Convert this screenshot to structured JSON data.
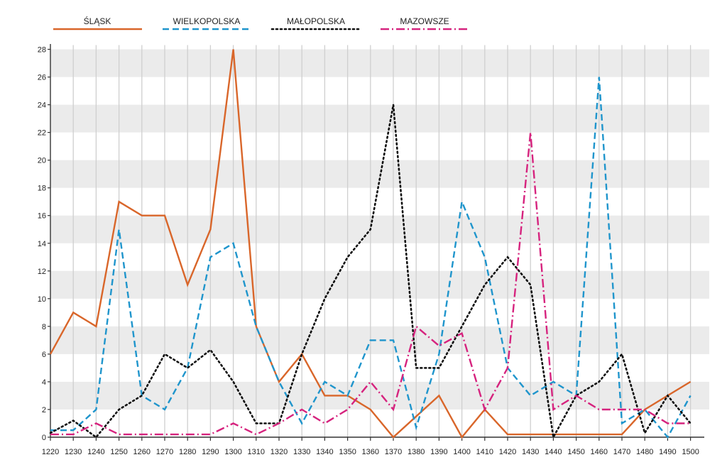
{
  "chart_data": {
    "type": "line",
    "title": "",
    "xlabel": "",
    "ylabel": "",
    "x": [
      1220,
      1230,
      1240,
      1250,
      1260,
      1270,
      1280,
      1290,
      1300,
      1310,
      1320,
      1330,
      1340,
      1350,
      1360,
      1370,
      1380,
      1390,
      1400,
      1410,
      1420,
      1430,
      1440,
      1450,
      1460,
      1470,
      1480,
      1490,
      1500
    ],
    "xlim": [
      1220,
      1500
    ],
    "ylim": [
      0,
      28
    ],
    "yticks": [
      0,
      2,
      4,
      6,
      8,
      10,
      12,
      14,
      16,
      18,
      20,
      22,
      24,
      26,
      28
    ],
    "grid": "vertical lines and alternating horizontal bands",
    "legend_position": "top",
    "series": [
      {
        "name": "ŚLĄSK",
        "color": "#d9662a",
        "style": "solid",
        "values": [
          6,
          9,
          8,
          17,
          16,
          16,
          11,
          15,
          28,
          8,
          4,
          6,
          3,
          3,
          2,
          0,
          1.5,
          3,
          0,
          2,
          0.2,
          0.2,
          0.2,
          0.2,
          0.2,
          0.2,
          2,
          3,
          4
        ]
      },
      {
        "name": "WIELKOPOLSKA",
        "color": "#1f95cc",
        "style": "dashed",
        "values": [
          0.5,
          0.5,
          2,
          15,
          3,
          2,
          5,
          13,
          14,
          8,
          4,
          1,
          4,
          3,
          7,
          7,
          0.7,
          6,
          17,
          13,
          5,
          3,
          4,
          3,
          26,
          1,
          2,
          0,
          3
        ]
      },
      {
        "name": "MAŁOPOLSKA",
        "color": "#111111",
        "style": "dotted",
        "values": [
          0.3,
          1.2,
          0,
          2,
          3,
          6,
          5,
          6.3,
          4,
          1,
          1,
          6,
          10,
          13,
          15,
          24,
          5,
          5,
          8,
          11,
          13,
          11,
          0,
          3,
          4,
          6,
          0.3,
          3,
          1
        ]
      },
      {
        "name": "MAZOWSZE",
        "color": "#d6237e",
        "style": "dashdot",
        "values": [
          0.2,
          0.2,
          1,
          0.2,
          0.2,
          0.2,
          0.2,
          0.2,
          1,
          0.2,
          1,
          2,
          1,
          2,
          4,
          2,
          8,
          6.6,
          7.5,
          2,
          5,
          22,
          2,
          3,
          2,
          2,
          2,
          1,
          1
        ]
      }
    ]
  }
}
